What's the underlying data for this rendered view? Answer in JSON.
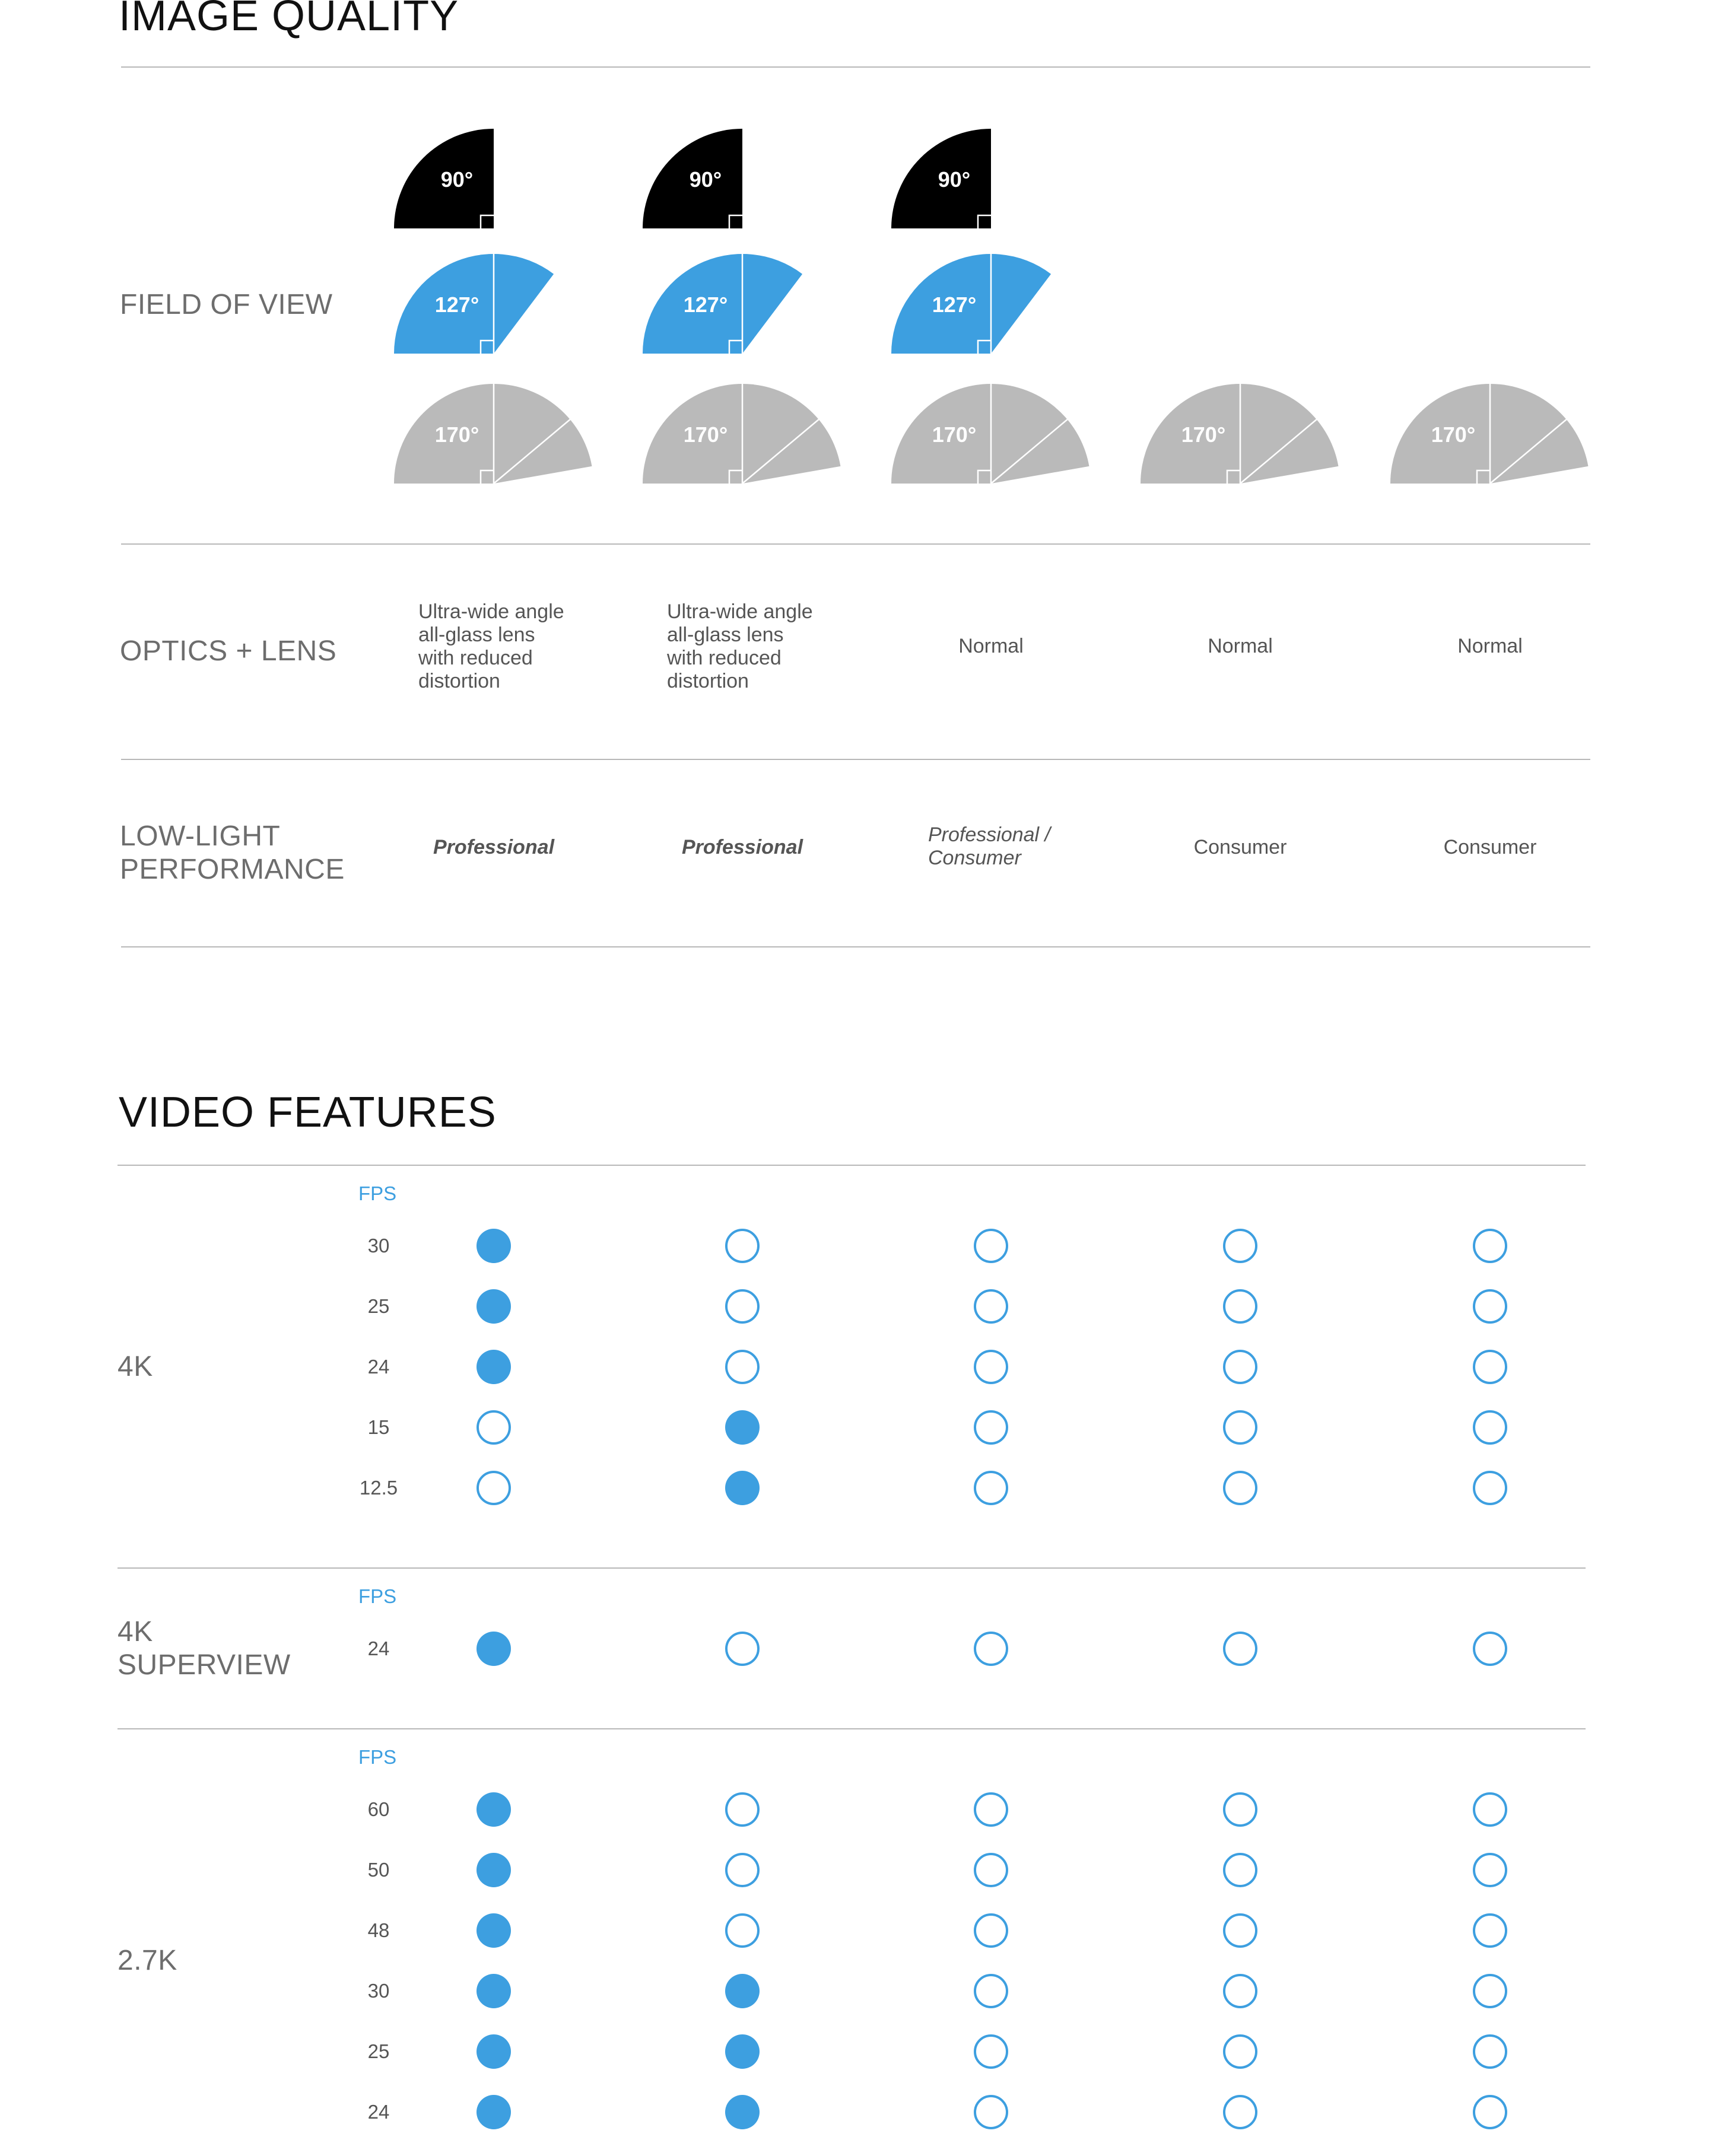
{
  "image_quality": {
    "title": "IMAGE QUALITY",
    "field_of_view": {
      "label": "FIELD OF VIEW",
      "columns": [
        {
          "angles": [
            "90°",
            "127°",
            "170°"
          ]
        },
        {
          "angles": [
            "90°",
            "127°",
            "170°"
          ]
        },
        {
          "angles": [
            "90°",
            "127°",
            "170°"
          ]
        },
        {
          "angles": [
            "170°"
          ]
        },
        {
          "angles": [
            "170°"
          ]
        }
      ]
    },
    "optics_lens": {
      "label": "OPTICS + LENS",
      "values": [
        [
          "Ultra-wide angle",
          "all-glass lens",
          "with reduced",
          "distortion"
        ],
        [
          "Ultra-wide angle",
          "all-glass lens",
          "with reduced",
          "distortion"
        ],
        "Normal",
        "Normal",
        "Normal"
      ]
    },
    "low_light": {
      "label_lines": [
        "LOW-LIGHT",
        "PERFORMANCE"
      ],
      "values": [
        "Professional",
        "Professional",
        [
          "Professional /",
          "Consumer"
        ],
        "Consumer",
        "Consumer"
      ]
    }
  },
  "video_features": {
    "title": "VIDEO FEATURES",
    "fps_header": "FPS",
    "colors": {
      "dot": "#3d9fe0",
      "fov_90": "#000000",
      "fov_127": "#3d9fe0",
      "fov_170": "#bababa"
    },
    "groups": [
      {
        "label_lines": [
          "4K"
        ],
        "rows": [
          {
            "fps": "30",
            "support": [
              true,
              false,
              false,
              false,
              false
            ]
          },
          {
            "fps": "25",
            "support": [
              true,
              false,
              false,
              false,
              false
            ]
          },
          {
            "fps": "24",
            "support": [
              true,
              false,
              false,
              false,
              false
            ]
          },
          {
            "fps": "15",
            "support": [
              false,
              true,
              false,
              false,
              false
            ]
          },
          {
            "fps": "12.5",
            "support": [
              false,
              true,
              false,
              false,
              false
            ]
          }
        ]
      },
      {
        "label_lines": [
          "4K",
          "SUPERVIEW"
        ],
        "rows": [
          {
            "fps": "24",
            "support": [
              true,
              false,
              false,
              false,
              false
            ]
          }
        ]
      },
      {
        "label_lines": [
          "2.7K"
        ],
        "rows": [
          {
            "fps": "60",
            "support": [
              true,
              false,
              false,
              false,
              false
            ]
          },
          {
            "fps": "50",
            "support": [
              true,
              false,
              false,
              false,
              false
            ]
          },
          {
            "fps": "48",
            "support": [
              true,
              false,
              false,
              false,
              false
            ]
          },
          {
            "fps": "30",
            "support": [
              true,
              true,
              false,
              false,
              false
            ]
          },
          {
            "fps": "25",
            "support": [
              true,
              true,
              false,
              false,
              false
            ]
          },
          {
            "fps": "24",
            "support": [
              true,
              true,
              false,
              false,
              false
            ]
          }
        ]
      }
    ]
  }
}
